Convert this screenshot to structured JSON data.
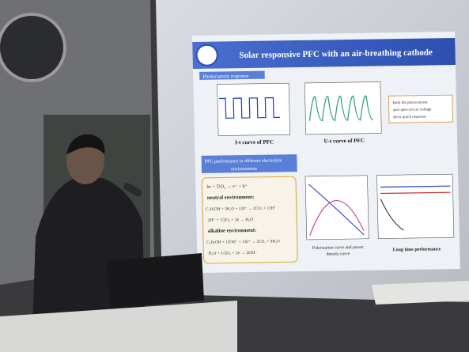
{
  "slide": {
    "title": "Solar responsive PFC with an air-breathing cathode",
    "section1": "Photocurrent response",
    "chart1_caption": "I-t curve of PFC",
    "chart2_caption": "U-t curve of PFC",
    "callout": [
      "Both the photocurrent",
      "and open-circuit voltage",
      "show quick response"
    ],
    "section2": [
      "PFC performance in different electrolyte",
      "environments"
    ],
    "equations": {
      "excitation": "hν + TiO₂ → e⁻ + h⁺",
      "neutral_heading": "neutral environment:",
      "neutral": [
        "C₂H₅OH + 3H₂O + 12h⁺ → 2CO₂ + 12H⁺",
        "2H⁺ + 1/2O₂ + 2e → H₂O"
      ],
      "alkaline_heading": "alkaline environment:",
      "alkaline": [
        "C₂H₅OH + 12OH⁻ + 12h⁺ → 2CO₂ + 9H₂O",
        "H₂O + 1/2O₂ + 2e → 2OH⁻"
      ]
    },
    "polarization_caption": [
      "Polarization curve and power",
      "density curve"
    ],
    "longtime_caption": "Long time performance"
  }
}
